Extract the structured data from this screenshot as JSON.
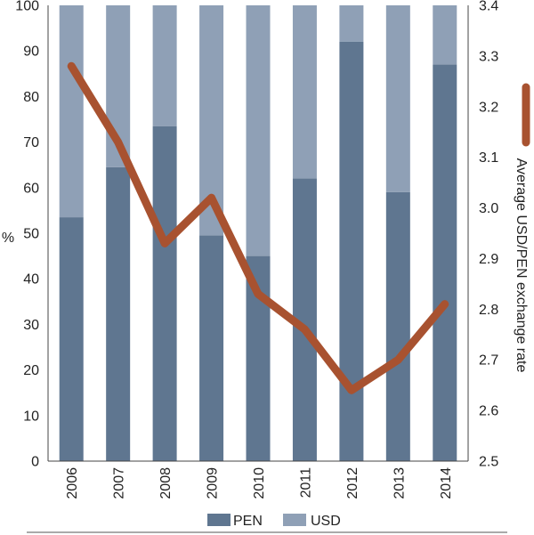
{
  "chart_data": {
    "type": "bar",
    "stacked": true,
    "categories": [
      "2006",
      "2007",
      "2008",
      "2009",
      "2010",
      "2011",
      "2012",
      "2013",
      "2014"
    ],
    "series": [
      {
        "name": "PEN",
        "color": "#5f7690",
        "values": [
          53.5,
          64.5,
          73.5,
          49.5,
          45,
          62,
          92,
          59,
          87
        ]
      },
      {
        "name": "USD",
        "color": "#8fa0b6",
        "values": [
          46.5,
          35.5,
          26.5,
          50.5,
          55,
          38,
          8,
          41,
          13
        ]
      }
    ],
    "line": {
      "color": "#a85230",
      "axis": "right",
      "values": [
        3.28,
        3.13,
        2.93,
        3.02,
        2.83,
        2.76,
        2.64,
        2.7,
        2.81
      ]
    },
    "ylabel": "%",
    "ylabel_right": "Average USD/PEN exchange rate",
    "ylim": [
      0,
      100
    ],
    "yticks": [
      "0",
      "10",
      "20",
      "30",
      "40",
      "50",
      "60",
      "70",
      "80",
      "90",
      "100"
    ],
    "ylim_right": [
      2.5,
      3.4
    ],
    "yticks_right": [
      "2.5",
      "2.6",
      "2.7",
      "2.8",
      "2.9",
      "3.0",
      "3.1",
      "3.2",
      "3.3",
      "3.4"
    ],
    "legend": [
      "PEN",
      "USD"
    ],
    "legend_position": "bottom",
    "grid": false
  }
}
